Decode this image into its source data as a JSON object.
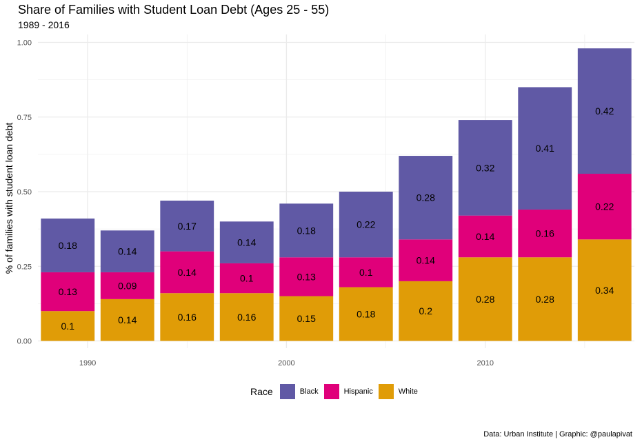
{
  "title": "Share of Families with Student Loan Debt (Ages 25 - 55)",
  "subtitle": "1989 - 2016",
  "caption": "Data: Urban Institute | Graphic: @paulapivat",
  "legend_title": "Race",
  "colors": {
    "Black": "#6059A5",
    "Hispanic": "#E0007A",
    "White": "#E09C07",
    "grid": "#EBEBEB",
    "tick_text": "#4D4D4D"
  },
  "chart_data": {
    "type": "bar",
    "stacked": true,
    "title": "Share of Families with Student Loan Debt (Ages 25 - 55)",
    "subtitle": "1989 - 2016",
    "xlabel": "",
    "ylabel": "% of families with student loan debt",
    "x": [
      1989,
      1992,
      1995,
      1998,
      2001,
      2004,
      2007,
      2010,
      2013,
      2016
    ],
    "xticks": [
      1990,
      2000,
      2010
    ],
    "xlim": [
      1987.5,
      2017.5
    ],
    "ylim": [
      0,
      1
    ],
    "yticks": [
      "0.00",
      "0.25",
      "0.50",
      "0.75",
      "1.00"
    ],
    "grid": true,
    "legend_position": "bottom",
    "series": [
      {
        "name": "White",
        "values": [
          0.1,
          0.14,
          0.16,
          0.16,
          0.15,
          0.18,
          0.2,
          0.28,
          0.28,
          0.34
        ],
        "labels": [
          "0.1",
          "0.14",
          "0.16",
          "0.16",
          "0.15",
          "0.18",
          "0.2",
          "0.28",
          "0.28",
          "0.34"
        ]
      },
      {
        "name": "Hispanic",
        "values": [
          0.13,
          0.09,
          0.14,
          0.1,
          0.13,
          0.1,
          0.14,
          0.14,
          0.16,
          0.22
        ],
        "labels": [
          "0.13",
          "0.09",
          "0.14",
          "0.1",
          "0.13",
          "0.1",
          "0.14",
          "0.14",
          "0.16",
          "0.22"
        ]
      },
      {
        "name": "Black",
        "values": [
          0.18,
          0.14,
          0.17,
          0.14,
          0.18,
          0.22,
          0.28,
          0.32,
          0.41,
          0.42
        ],
        "labels": [
          "0.18",
          "0.14",
          "0.17",
          "0.14",
          "0.18",
          "0.22",
          "0.28",
          "0.32",
          "0.41",
          "0.42"
        ]
      }
    ]
  }
}
